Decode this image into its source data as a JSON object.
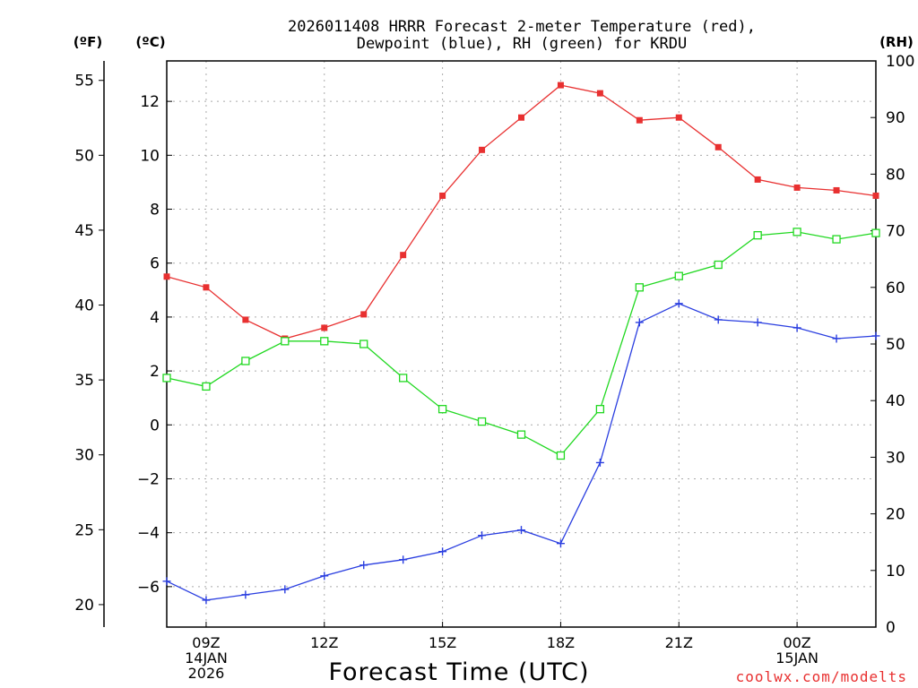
{
  "chart_data": {
    "type": "line",
    "title_line1": "2026011408 HRRR Forecast 2-meter Temperature (red),",
    "title_line2": "Dewpoint (blue), RH (green) for KRDU",
    "xlabel": "Forecast Time (UTC)",
    "unit_f": "(ºF)",
    "unit_c": "(ºC)",
    "unit_rh": "(RH)",
    "watermark": "coolwx.com/modelts",
    "x_hours": [
      8,
      9,
      10,
      11,
      12,
      13,
      14,
      15,
      16,
      17,
      18,
      19,
      20,
      21,
      22,
      23,
      24,
      25,
      26
    ],
    "x_ticks": [
      {
        "hour": 9,
        "lines": [
          "09Z",
          "14JAN",
          "2026"
        ]
      },
      {
        "hour": 12,
        "lines": [
          "12Z"
        ]
      },
      {
        "hour": 15,
        "lines": [
          "15Z"
        ]
      },
      {
        "hour": 18,
        "lines": [
          "18Z"
        ]
      },
      {
        "hour": 21,
        "lines": [
          "21Z"
        ]
      },
      {
        "hour": 24,
        "lines": [
          "00Z",
          "15JAN"
        ]
      }
    ],
    "xlim": [
      8,
      26
    ],
    "celsius_axis": {
      "ylim": [
        -7.5,
        13.5
      ],
      "ticks": [
        -6,
        -4,
        -2,
        0,
        2,
        4,
        6,
        8,
        10,
        12
      ],
      "labels": [
        "−6",
        "−4",
        "−2",
        "0",
        "2",
        "4",
        "6",
        "8",
        "10",
        "12"
      ]
    },
    "fahrenheit_axis": {
      "ticks": [
        20,
        25,
        30,
        35,
        40,
        45,
        50,
        55
      ],
      "labels": [
        "20",
        "25",
        "30",
        "35",
        "40",
        "45",
        "50",
        "55"
      ]
    },
    "rh_axis": {
      "ylim": [
        0,
        100
      ],
      "ticks": [
        0,
        10,
        20,
        30,
        40,
        50,
        60,
        70,
        80,
        90,
        100
      ],
      "labels": [
        "0",
        "10",
        "20",
        "30",
        "40",
        "50",
        "60",
        "70",
        "80",
        "90",
        "100"
      ]
    },
    "series": [
      {
        "name": "Temperature",
        "color": "#e83030",
        "marker": "filled-square",
        "axis": "celsius",
        "values": [
          5.5,
          5.1,
          3.9,
          3.2,
          3.6,
          4.1,
          6.3,
          8.5,
          10.2,
          11.4,
          12.6,
          12.3,
          11.3,
          11.4,
          10.3,
          9.1,
          8.8,
          8.7,
          8.5
        ]
      },
      {
        "name": "Dewpoint",
        "color": "#2a3ee0",
        "marker": "plus",
        "axis": "celsius",
        "values": [
          -5.8,
          -6.5,
          -6.3,
          -6.1,
          -5.6,
          -5.2,
          -5.0,
          -4.7,
          -4.1,
          -3.9,
          -4.4,
          -1.4,
          3.8,
          4.5,
          3.9,
          3.8,
          3.6,
          3.2,
          3.3
        ]
      },
      {
        "name": "RH",
        "color": "#20d820",
        "marker": "open-square",
        "axis": "rh",
        "values": [
          44,
          42.5,
          47,
          50.5,
          50.5,
          50,
          44,
          38.5,
          36.3,
          34,
          30.3,
          38.5,
          60,
          62,
          64,
          69.2,
          69.8,
          68.5,
          69.6
        ]
      }
    ]
  }
}
